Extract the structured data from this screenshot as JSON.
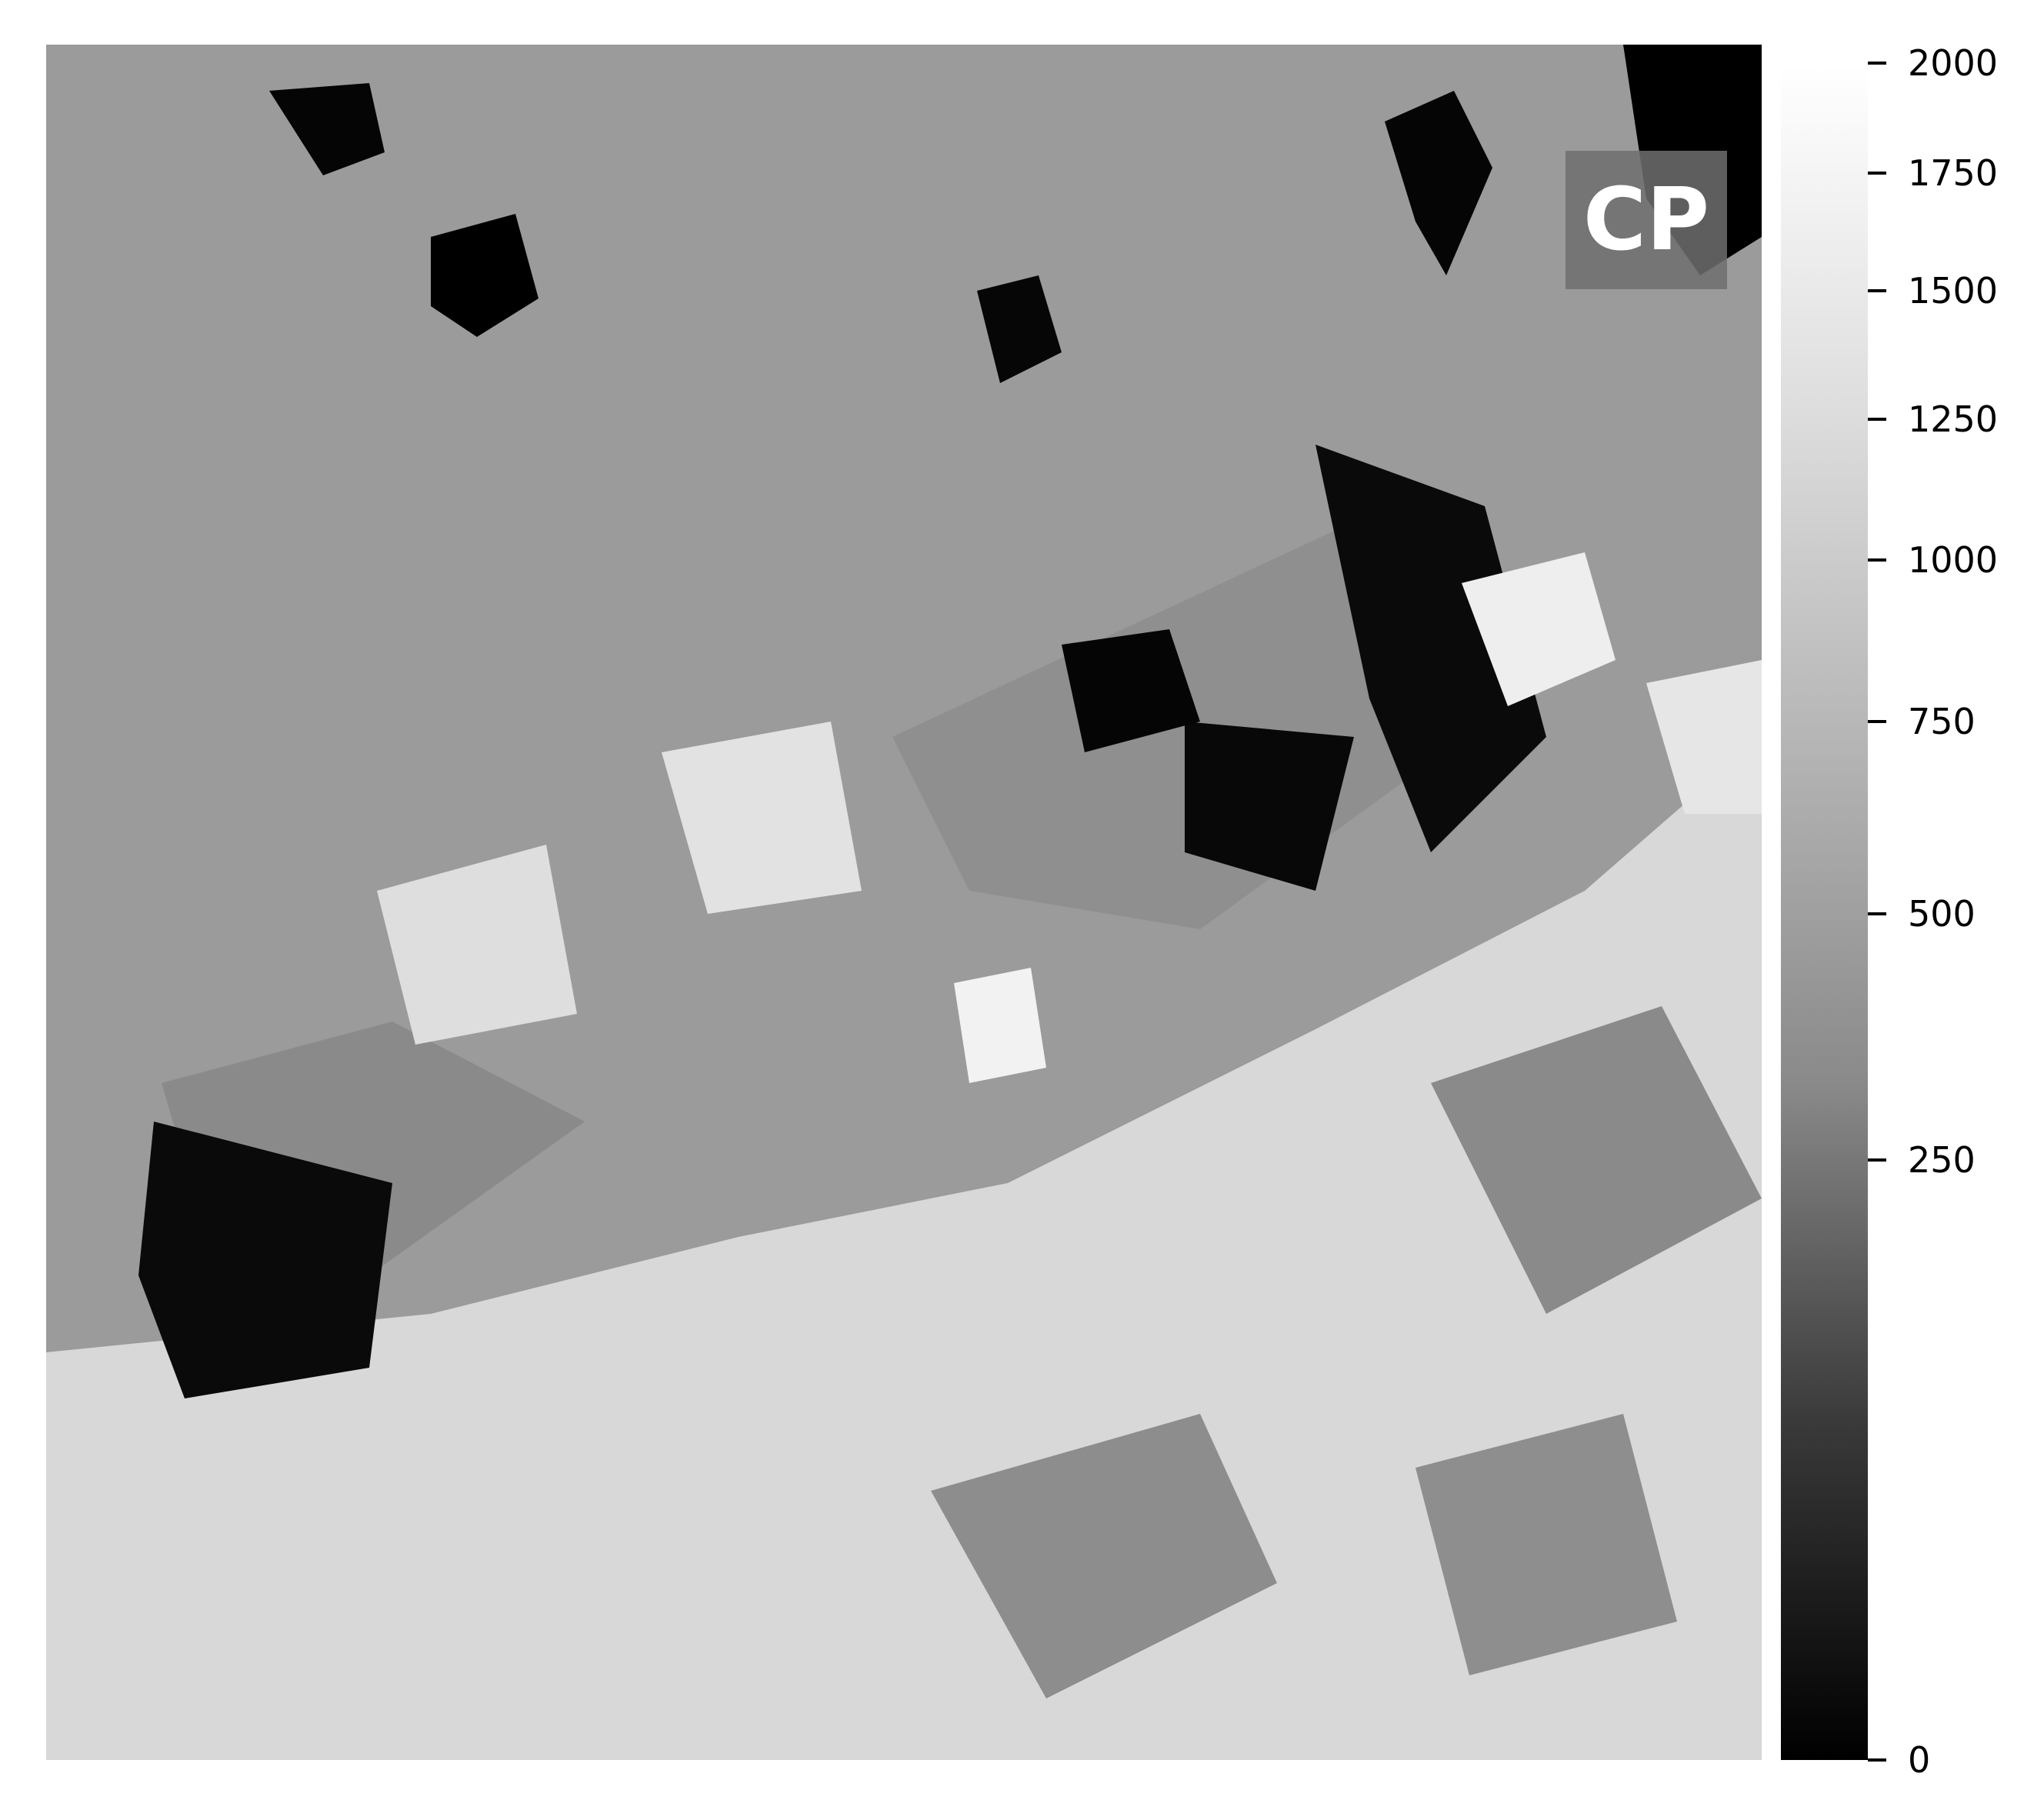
{
  "image": {
    "overlay_label": "CP",
    "colormap": "gray"
  },
  "chart_data": {
    "type": "heatmap",
    "colorbar": {
      "ticks": [
        {
          "value": 2000,
          "label": "2000"
        },
        {
          "value": 1750,
          "label": "1750"
        },
        {
          "value": 1500,
          "label": "1500"
        },
        {
          "value": 1250,
          "label": "1250"
        },
        {
          "value": 1000,
          "label": "1000"
        },
        {
          "value": 750,
          "label": "750"
        },
        {
          "value": 500,
          "label": "500"
        },
        {
          "value": 250,
          "label": "250"
        },
        {
          "value": 0,
          "label": "0"
        }
      ],
      "range": [
        0,
        2000
      ]
    }
  }
}
